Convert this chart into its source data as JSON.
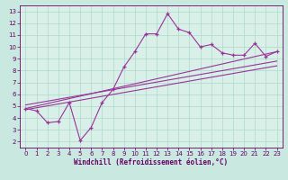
{
  "title": "",
  "xlabel": "Windchill (Refroidissement éolien,°C)",
  "ylabel": "",
  "bg_color": "#c8e8e0",
  "plot_bg_color": "#d8f0e8",
  "grid_color": "#b0d8cc",
  "line_color": "#993399",
  "xlim": [
    -0.5,
    23.5
  ],
  "ylim": [
    1.5,
    13.5
  ],
  "xticks": [
    0,
    1,
    2,
    3,
    4,
    5,
    6,
    7,
    8,
    9,
    10,
    11,
    12,
    13,
    14,
    15,
    16,
    17,
    18,
    19,
    20,
    21,
    22,
    23
  ],
  "yticks": [
    2,
    3,
    4,
    5,
    6,
    7,
    8,
    9,
    10,
    11,
    12,
    13
  ],
  "line1_x": [
    0,
    1,
    2,
    3,
    4,
    5,
    6,
    7,
    8,
    9,
    10,
    11,
    12,
    13,
    14,
    15,
    16,
    17,
    18,
    19,
    20,
    21,
    22,
    23
  ],
  "line1_y": [
    4.8,
    4.6,
    3.6,
    3.7,
    5.3,
    2.1,
    3.2,
    5.3,
    6.4,
    8.3,
    9.6,
    11.1,
    11.1,
    12.8,
    11.5,
    11.2,
    10.0,
    10.2,
    9.5,
    9.3,
    9.3,
    10.3,
    9.2,
    9.6
  ],
  "line2_x": [
    0,
    23
  ],
  "line2_y": [
    4.8,
    9.6
  ],
  "line3_x": [
    0,
    23
  ],
  "line3_y": [
    5.1,
    8.8
  ],
  "line4_x": [
    0,
    23
  ],
  "line4_y": [
    4.7,
    8.4
  ],
  "tick_color": "#660066",
  "label_fontsize": 5.5,
  "tick_fontsize": 5
}
